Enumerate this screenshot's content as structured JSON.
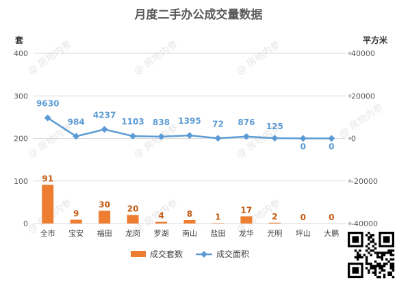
{
  "chart_data": {
    "type": "bar",
    "title": "月度二手办公成交量数据",
    "categories": [
      "全市",
      "宝安",
      "福田",
      "龙岗",
      "罗湖",
      "南山",
      "盐田",
      "龙华",
      "光明",
      "坪山",
      "大鹏"
    ],
    "y_left_label": "套",
    "y_right_label": "平方米",
    "y_left_ticks": [
      "0",
      "100",
      "200",
      "300",
      "400"
    ],
    "y_right_ticks": [
      "-40000",
      "-20000",
      "0",
      "20000",
      "40000"
    ],
    "ylim_left": [
      0,
      400
    ],
    "ylim_right": [
      -40000,
      40000
    ],
    "series": [
      {
        "name": "成交套数",
        "type": "bar",
        "axis": "left",
        "color": "#ED7D31",
        "values": [
          91,
          9,
          30,
          20,
          4,
          8,
          1,
          17,
          2,
          0,
          0
        ],
        "labels": [
          "91",
          "9",
          "30",
          "20",
          "4",
          "8",
          "1",
          "17",
          "2",
          "0",
          "0"
        ]
      },
      {
        "name": "成交面积",
        "type": "line",
        "axis": "right",
        "color": "#5B9BD5",
        "values": [
          9630,
          984,
          4237,
          1103,
          838,
          1395,
          72,
          876,
          125,
          0,
          0
        ],
        "labels": [
          "9630",
          "984",
          "4237",
          "1103",
          "838",
          "1395",
          "72",
          "876",
          "125",
          "0",
          "0"
        ]
      }
    ],
    "legend_position": "bottom",
    "grid": true
  },
  "watermark": {
    "text": "房地内参",
    "symbol": "@"
  },
  "qr_icon": "qr-code-icon"
}
